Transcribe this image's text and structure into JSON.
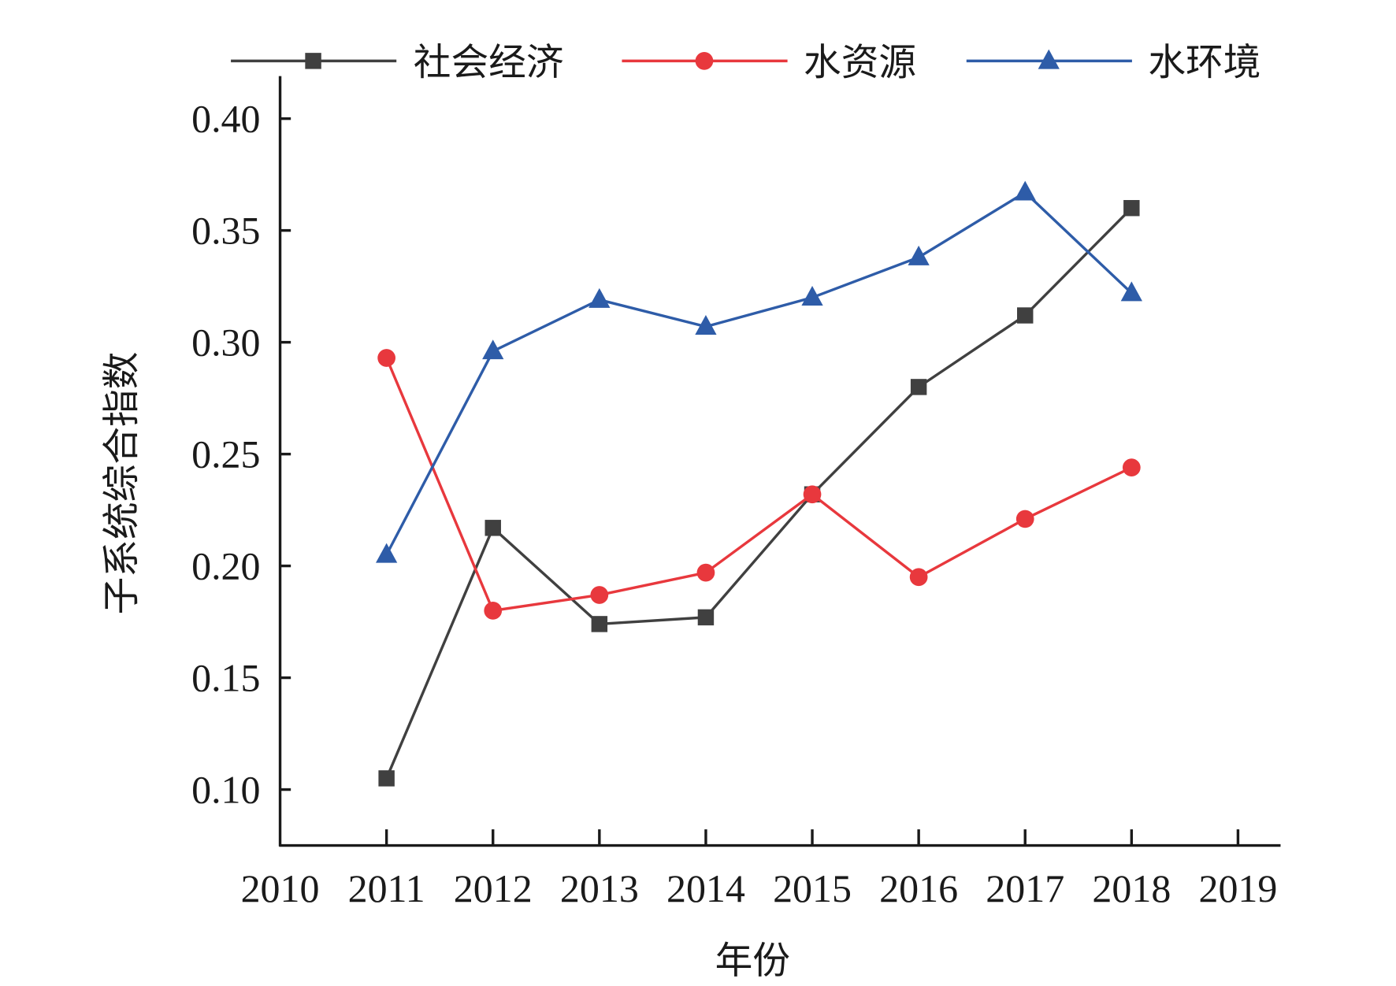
{
  "chart_data": {
    "type": "line",
    "title": "",
    "xlabel": "年份",
    "ylabel": "子系统综合指数",
    "x": [
      2011,
      2012,
      2013,
      2014,
      2015,
      2016,
      2017,
      2018
    ],
    "xticks": [
      "2010",
      "2011",
      "2012",
      "2013",
      "2014",
      "2015",
      "2016",
      "2017",
      "2018",
      "2019"
    ],
    "yticks": [
      "0.10",
      "0.15",
      "0.20",
      "0.25",
      "0.30",
      "0.35",
      "0.40"
    ],
    "xlim": [
      2010,
      2019.4
    ],
    "ylim": [
      0.075,
      0.419
    ],
    "grid": false,
    "legend_position": "top",
    "series": [
      {
        "name": "社会经济",
        "color": "#404040",
        "marker": "square",
        "values": [
          0.105,
          0.217,
          0.174,
          0.177,
          0.232,
          0.28,
          0.312,
          0.36
        ]
      },
      {
        "name": "水资源",
        "color": "#e8383d",
        "marker": "circle",
        "values": [
          0.293,
          0.18,
          0.187,
          0.197,
          0.232,
          0.195,
          0.221,
          0.244
        ]
      },
      {
        "name": "水环境",
        "color": "#2e5ca8",
        "marker": "triangle",
        "values": [
          0.205,
          0.296,
          0.319,
          0.307,
          0.32,
          0.338,
          0.367,
          0.322
        ]
      }
    ]
  }
}
